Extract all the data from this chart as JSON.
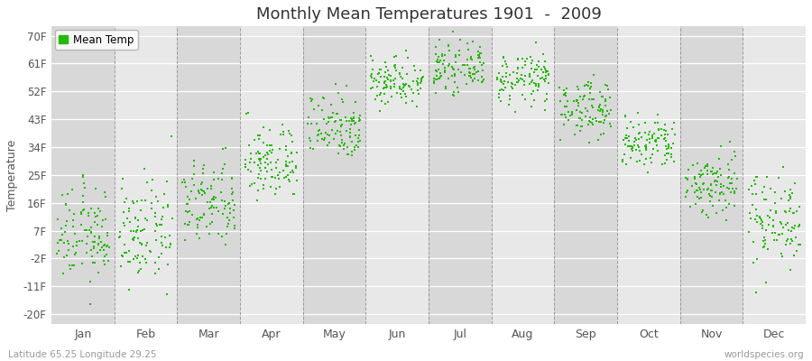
{
  "title": "Monthly Mean Temperatures 1901  -  2009",
  "ylabel": "Temperature",
  "yticks": [
    -20,
    -11,
    -2,
    7,
    16,
    25,
    34,
    43,
    52,
    61,
    70
  ],
  "ytick_labels": [
    "-20F",
    "-11F",
    "-2F",
    "7F",
    "16F",
    "25F",
    "34F",
    "43F",
    "52F",
    "61F",
    "70F"
  ],
  "ylim": [
    -23,
    73
  ],
  "months": [
    "Jan",
    "Feb",
    "Mar",
    "Apr",
    "May",
    "Jun",
    "Jul",
    "Aug",
    "Sep",
    "Oct",
    "Nov",
    "Dec"
  ],
  "dot_color": "#22BB00",
  "background_color": "#FFFFFF",
  "plot_bg_color": "#E8E8E8",
  "band_colors": [
    "#D8D8D8",
    "#E8E8E8"
  ],
  "legend_label": "Mean Temp",
  "subtitle_left": "Latitude 65.25 Longitude 29.25",
  "subtitle_right": "worldspecies.org",
  "n_years": 109,
  "monthly_means": [
    5.5,
    6.0,
    15.5,
    29.0,
    41.0,
    55.5,
    59.5,
    56.0,
    46.5,
    35.0,
    22.0,
    11.0
  ],
  "monthly_stds": [
    7.5,
    8.0,
    7.0,
    6.0,
    5.5,
    4.0,
    3.5,
    4.0,
    4.5,
    4.5,
    5.5,
    7.5
  ]
}
